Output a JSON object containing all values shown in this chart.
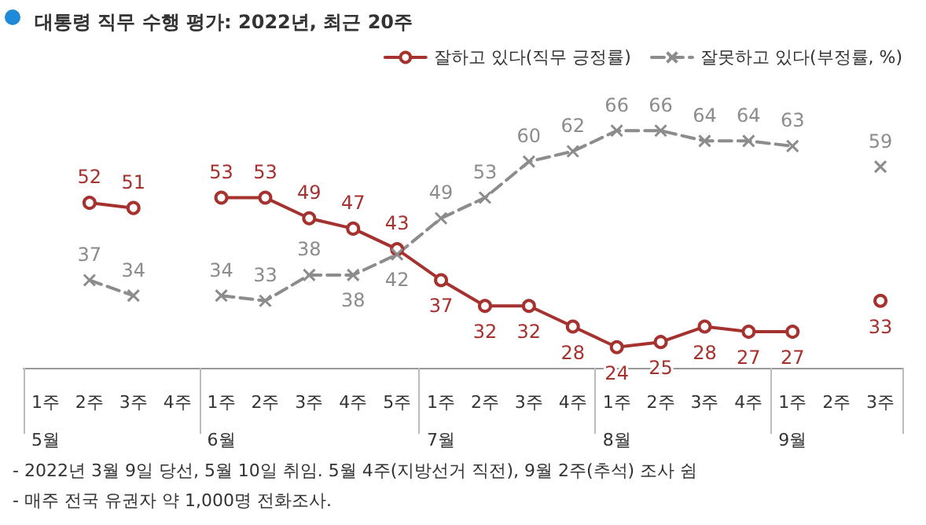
{
  "chart_data": {
    "type": "line",
    "title": "대통령 직무 수행 평가: 2022년, 최근 20주",
    "categories": [
      "1주\n5월",
      "2주",
      "3주",
      "4주",
      "1주\n6월",
      "2주",
      "3주",
      "4주",
      "5주",
      "1주\n7월",
      "2주",
      "3주",
      "4주",
      "1주\n8월",
      "2주",
      "3주",
      "4주",
      "1주\n9월",
      "2주",
      "3주"
    ],
    "series": [
      {
        "name": "잘하고 있다(직무 긍정률)",
        "color": "#a5322e",
        "marker": "circle",
        "line_style": "solid",
        "values": [
          null,
          52,
          51,
          null,
          53,
          53,
          49,
          47,
          43,
          37,
          32,
          32,
          28,
          24,
          25,
          28,
          27,
          27,
          null,
          33
        ]
      },
      {
        "name": "잘못하고 있다(부정률, %)",
        "color": "#8c8c8c",
        "marker": "cross",
        "line_style": "dashed",
        "values": [
          null,
          37,
          34,
          null,
          34,
          33,
          38,
          38,
          42,
          49,
          53,
          60,
          62,
          66,
          66,
          64,
          64,
          63,
          null,
          59
        ]
      }
    ],
    "data_labels": true,
    "legend": "top right",
    "grid": false,
    "annotations": [
      "- 2022년 3월 9일 당선, 5월 10일 취임. 5월 4주(지방선거 직전), 9월 2주(추석) 조사 쉼",
      "- 매주 전국 유권자 약 1,000명 전화조사."
    ]
  }
}
